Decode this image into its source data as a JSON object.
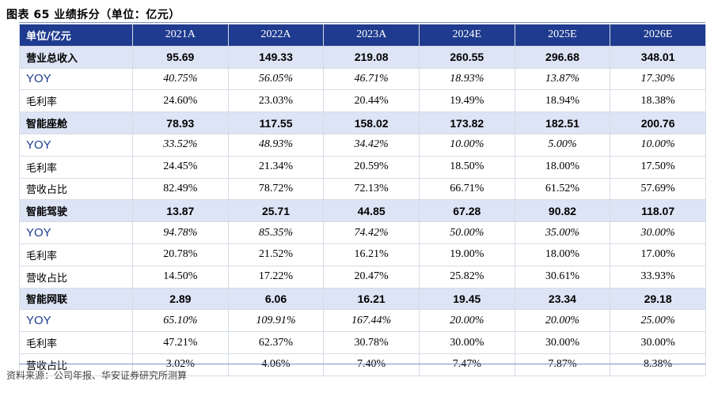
{
  "title": "图表 65  业绩拆分（单位：亿元）",
  "table": {
    "header": [
      "单位/亿元",
      "2021A",
      "2022A",
      "2023A",
      "2024E",
      "2025E",
      "2026E"
    ],
    "rows": [
      {
        "type": "hl",
        "label": "营业总收入",
        "values": [
          "95.69",
          "149.33",
          "219.08",
          "260.55",
          "296.68",
          "348.01"
        ]
      },
      {
        "type": "yoy",
        "label": "YOY",
        "values": [
          "40.75%",
          "56.05%",
          "46.71%",
          "18.93%",
          "13.87%",
          "17.30%"
        ]
      },
      {
        "type": "plain",
        "label": "毛利率",
        "values": [
          "24.60%",
          "23.03%",
          "20.44%",
          "19.49%",
          "18.94%",
          "18.38%"
        ]
      },
      {
        "type": "hl",
        "label": "智能座舱",
        "values": [
          "78.93",
          "117.55",
          "158.02",
          "173.82",
          "182.51",
          "200.76"
        ]
      },
      {
        "type": "yoy",
        "label": "YOY",
        "values": [
          "33.52%",
          "48.93%",
          "34.42%",
          "10.00%",
          "5.00%",
          "10.00%"
        ]
      },
      {
        "type": "plain",
        "label": "毛利率",
        "values": [
          "24.45%",
          "21.34%",
          "20.59%",
          "18.50%",
          "18.00%",
          "17.50%"
        ]
      },
      {
        "type": "plain",
        "label": "营收占比",
        "values": [
          "82.49%",
          "78.72%",
          "72.13%",
          "66.71%",
          "61.52%",
          "57.69%"
        ]
      },
      {
        "type": "hl",
        "label": "智能驾驶",
        "values": [
          "13.87",
          "25.71",
          "44.85",
          "67.28",
          "90.82",
          "118.07"
        ]
      },
      {
        "type": "yoy",
        "label": "YOY",
        "values": [
          "94.78%",
          "85.35%",
          "74.42%",
          "50.00%",
          "35.00%",
          "30.00%"
        ]
      },
      {
        "type": "plain",
        "label": "毛利率",
        "values": [
          "20.78%",
          "21.52%",
          "16.21%",
          "19.00%",
          "18.00%",
          "17.00%"
        ]
      },
      {
        "type": "plain",
        "label": "营收占比",
        "values": [
          "14.50%",
          "17.22%",
          "20.47%",
          "25.82%",
          "30.61%",
          "33.93%"
        ]
      },
      {
        "type": "hl",
        "label": "智能网联",
        "values": [
          "2.89",
          "6.06",
          "16.21",
          "19.45",
          "23.34",
          "29.18"
        ]
      },
      {
        "type": "yoy",
        "label": "YOY",
        "values": [
          "65.10%",
          "109.91%",
          "167.44%",
          "20.00%",
          "20.00%",
          "25.00%"
        ]
      },
      {
        "type": "plain",
        "label": "毛利率",
        "values": [
          "47.21%",
          "62.37%",
          "30.78%",
          "30.00%",
          "30.00%",
          "30.00%"
        ]
      },
      {
        "type": "plain",
        "label": "营收占比",
        "values": [
          "3.02%",
          "4.06%",
          "7.40%",
          "7.47%",
          "7.87%",
          "8.38%"
        ]
      }
    ]
  },
  "source": "资料来源：公司年报、华安证券研究所测算",
  "colors": {
    "header_bg": "#1f3b8f",
    "highlight_row_bg": "#dce4f5",
    "yoy_label": "#1f3b8f"
  }
}
